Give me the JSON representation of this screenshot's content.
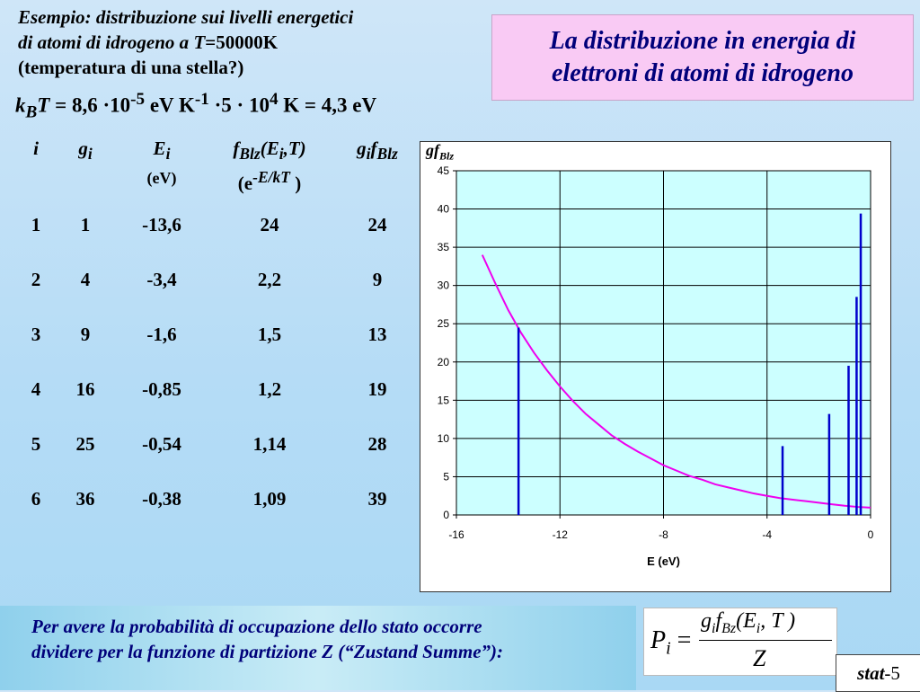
{
  "intro": {
    "line1": "Esempio: distribuzione sui livelli energetici",
    "line2_a": "di atomi di idrogeno a ",
    "line2_T": "T",
    "line2_b": "=50000K",
    "line3": "(temperatura di una stella?)"
  },
  "kbt": {
    "k": "k",
    "B": "B",
    "T": "T",
    "eq1": " = 8,6 ·10",
    "exp1": "-5",
    "unit1": " eV K",
    "exp2": "-1",
    "mid": " ·5 · 10",
    "exp3": "4",
    "tail": " K = 4,3 eV"
  },
  "title": {
    "line1": "La distribuzione in energia di",
    "line2": "elettroni di atomi di idrogeno"
  },
  "table": {
    "h_i": "i",
    "h_g": "g",
    "h_g_sub": "i",
    "h_E": "E",
    "h_E_sub": "i",
    "h_E_unit": "(eV)",
    "h_f": "f",
    "h_f_sub": "Blz",
    "h_f_args1": "(E",
    "h_f_args_sub": "i",
    "h_f_args2": ",T)",
    "h_f_unit_a": "(e",
    "h_f_unit_exp": "-E/kT",
    "h_f_unit_b": " )",
    "h_gf_g": "g",
    "h_gf_gsub": "i",
    "h_gf_f": "f",
    "h_gf_fsub": "Blz",
    "rows": [
      {
        "i": "1",
        "g": "1",
        "E": "-13,6",
        "f": "24",
        "gf": "24"
      },
      {
        "i": "2",
        "g": "4",
        "E": "-3,4",
        "f": "2,2",
        "gf": "9"
      },
      {
        "i": "3",
        "g": "9",
        "E": "-1,6",
        "f": "1,5",
        "gf": "13"
      },
      {
        "i": "4",
        "g": "16",
        "E": "-0,85",
        "f": "1,2",
        "gf": "19"
      },
      {
        "i": "5",
        "g": "25",
        "E": "-0,54",
        "f": "1,14",
        "gf": "28"
      },
      {
        "i": "6",
        "g": "36",
        "E": "-0,38",
        "f": "1,09",
        "gf": "39"
      }
    ]
  },
  "chart_label": {
    "g": "g",
    "f": "f",
    "sub": "Blz"
  },
  "chart_data": {
    "type": "bar",
    "xlabel": "E (eV)",
    "xlim": [
      -16,
      0
    ],
    "ylim": [
      0,
      45
    ],
    "xticks": [
      -16,
      -12,
      -8,
      -4,
      0
    ],
    "yticks": [
      0,
      5,
      10,
      15,
      20,
      25,
      30,
      35,
      40,
      45
    ],
    "grid": true,
    "bars": {
      "x": [
        -13.6,
        -3.4,
        -1.6,
        -0.85,
        -0.54,
        -0.38
      ],
      "y": [
        24.5,
        9,
        13.2,
        19.5,
        28.5,
        39.4
      ],
      "color": "#0000cc"
    },
    "curve": {
      "x": [
        -15,
        -14.5,
        -14,
        -13.5,
        -13,
        -12.5,
        -12,
        -11.5,
        -11,
        -10.5,
        -10,
        -9.5,
        -9,
        -8.5,
        -8,
        -7.5,
        -7,
        -6.5,
        -6,
        -5.5,
        -5,
        -4.5,
        -4,
        -3.5,
        -3,
        -2.5,
        -2,
        -1.5,
        -1,
        -0.5,
        0
      ],
      "y": [
        34,
        30.3,
        26.8,
        23.8,
        21.2,
        18.9,
        16.8,
        14.9,
        13.2,
        11.8,
        10.4,
        9.3,
        8.3,
        7.4,
        6.5,
        5.8,
        5.1,
        4.6,
        4.0,
        3.6,
        3.2,
        2.8,
        2.5,
        2.2,
        2.0,
        1.8,
        1.6,
        1.4,
        1.2,
        1.05,
        0.95
      ],
      "color": "#ee00ee"
    },
    "plot_bg": "#ccffff"
  },
  "bottom": {
    "line1": "Per avere la probabilità di occupazione dello stato     occorre",
    "line2": "dividere per la funzione di partizione Z (“Zustand Summe”):"
  },
  "formula": {
    "P": "P",
    "P_sub": "i",
    "eq": "=",
    "num_g": "g",
    "num_gsub": "i",
    "num_f": "f",
    "num_fsub": "Bz",
    "num_args1": "(E",
    "num_args_sub": "i",
    "num_args2": ", T )",
    "den": "Z"
  },
  "footer": {
    "stat": "stat",
    "page": "-5"
  }
}
